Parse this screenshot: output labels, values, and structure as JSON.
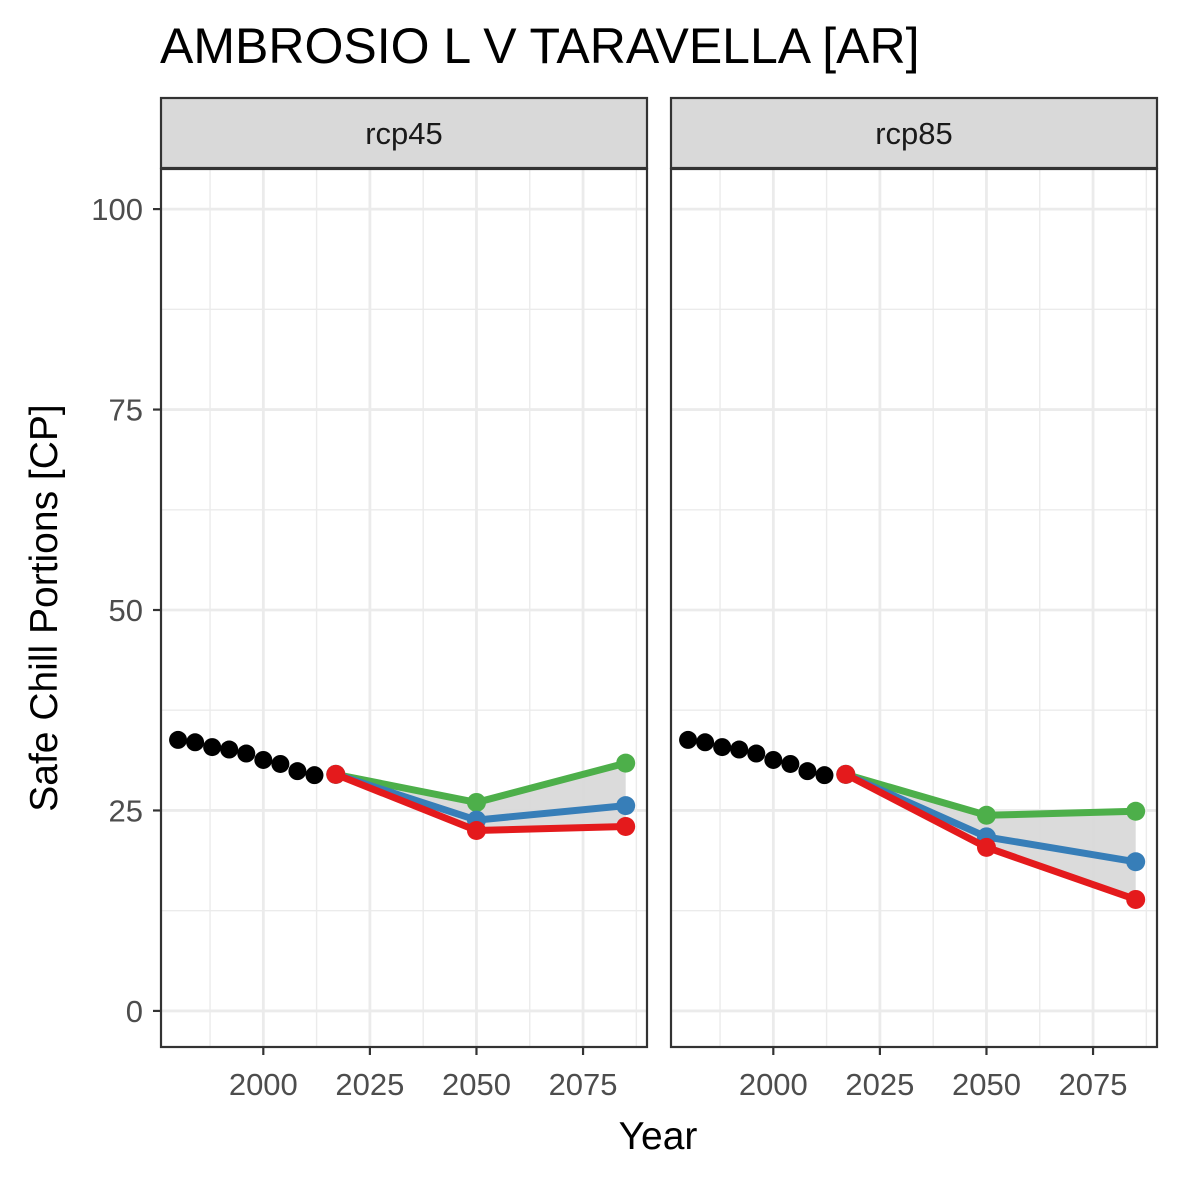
{
  "chart_data": {
    "type": "line",
    "title": "AMBROSIO L V TARAVELLA [AR]",
    "xlabel": "Year",
    "ylabel": "Safe Chill Portions [CP]",
    "xlim": [
      1976,
      2090
    ],
    "ylim": [
      -4.5,
      105
    ],
    "x_ticks": [
      2000,
      2025,
      2050,
      2075
    ],
    "y_ticks": [
      0,
      25,
      50,
      75,
      100
    ],
    "grid": true,
    "legend": "none",
    "colors": {
      "historic": "#000000",
      "low": "#e41a1c",
      "mid": "#377eb8",
      "high": "#4daf4a",
      "ribbon": "#d9d9d9",
      "strip_fill": "#d9d9d9",
      "grid": "#ebebeb",
      "panel_border": "#333333"
    },
    "facets": [
      {
        "label": "rcp45",
        "historic": {
          "x": [
            1980,
            1984,
            1988,
            1992,
            1996,
            2000,
            2004,
            2008,
            2012
          ],
          "y": [
            33.8,
            33.5,
            32.9,
            32.6,
            32.1,
            31.3,
            30.8,
            29.9,
            29.4
          ]
        },
        "ribbon": {
          "x": [
            2017,
            2050,
            2085
          ],
          "ymin": [
            29.5,
            22.5,
            23.0
          ],
          "ymax": [
            29.5,
            26.0,
            30.9
          ]
        },
        "series": [
          {
            "role": "low",
            "x": [
              2017,
              2050,
              2085
            ],
            "y": [
              29.5,
              22.5,
              23.0
            ]
          },
          {
            "role": "mid",
            "x": [
              2017,
              2050,
              2085
            ],
            "y": [
              29.5,
              23.8,
              25.6
            ]
          },
          {
            "role": "high",
            "x": [
              2017,
              2050,
              2085
            ],
            "y": [
              29.5,
              26.0,
              30.9
            ]
          }
        ]
      },
      {
        "label": "rcp85",
        "historic": {
          "x": [
            1980,
            1984,
            1988,
            1992,
            1996,
            2000,
            2004,
            2008,
            2012
          ],
          "y": [
            33.8,
            33.5,
            32.9,
            32.6,
            32.1,
            31.3,
            30.8,
            29.9,
            29.4
          ]
        },
        "ribbon": {
          "x": [
            2017,
            2050,
            2085
          ],
          "ymin": [
            29.5,
            20.4,
            13.9
          ],
          "ymax": [
            29.5,
            24.4,
            24.9
          ]
        },
        "series": [
          {
            "role": "low",
            "x": [
              2017,
              2050,
              2085
            ],
            "y": [
              29.5,
              20.4,
              13.9
            ]
          },
          {
            "role": "mid",
            "x": [
              2017,
              2050,
              2085
            ],
            "y": [
              29.5,
              21.7,
              18.6
            ]
          },
          {
            "role": "high",
            "x": [
              2017,
              2050,
              2085
            ],
            "y": [
              29.5,
              24.4,
              24.9
            ]
          }
        ]
      }
    ]
  }
}
